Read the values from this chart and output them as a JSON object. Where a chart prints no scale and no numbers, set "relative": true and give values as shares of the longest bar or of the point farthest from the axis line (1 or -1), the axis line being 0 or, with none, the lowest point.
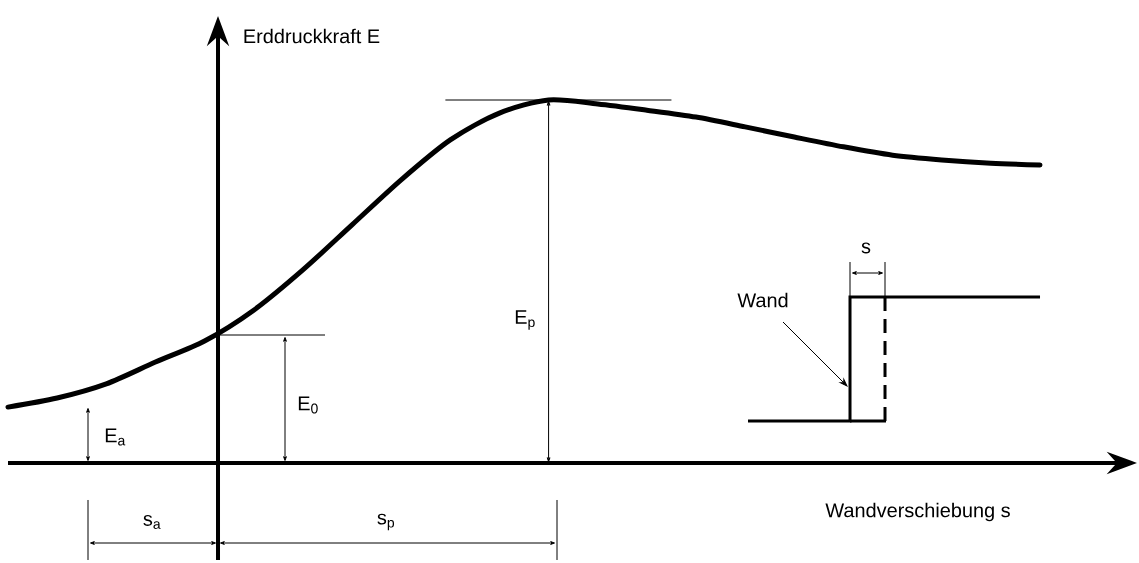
{
  "chart_data": {
    "type": "line",
    "relative": true,
    "color": "#000000",
    "ylabel": "Erddruckkraft E",
    "xlabel": "Wandverschiebung s",
    "categories": [
      null,
      null,
      null,
      null,
      null,
      null,
      null,
      null,
      null,
      null,
      null,
      null,
      null,
      null,
      null,
      null,
      null,
      null,
      null,
      null,
      null,
      null
    ],
    "values": [
      0.154,
      0.179,
      0.218,
      0.278,
      0.336,
      0.421,
      0.532,
      0.656,
      0.78,
      0.89,
      0.964,
      1,
      0.989,
      0.972,
      0.953,
      0.926,
      0.898,
      0.871,
      0.848,
      0.835,
      0.826,
      0.821
    ],
    "annotations": [
      "E$_{a}$",
      "E$_{0}$",
      "E$_{p}$",
      "s$_{a}$",
      "s$_{p}$",
      "s",
      "Wand"
    ]
  }
}
